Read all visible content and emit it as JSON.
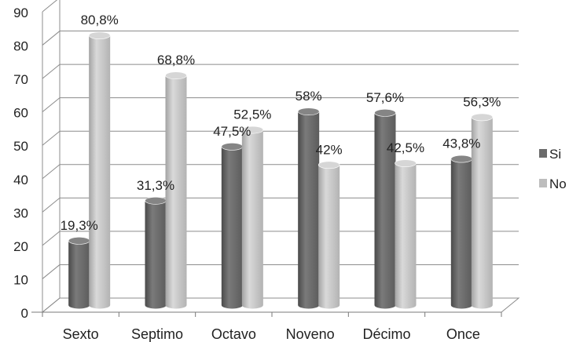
{
  "chart_data": {
    "type": "bar",
    "title": "",
    "xlabel": "",
    "ylabel": "",
    "ylim": [
      0,
      90
    ],
    "yticks": [
      0,
      10,
      20,
      30,
      40,
      50,
      60,
      70,
      80,
      90
    ],
    "grid": true,
    "three_d": true,
    "legend_position": "right",
    "categories": [
      "Sexto",
      "Septimo",
      "Octavo",
      "Noveno",
      "Décimo",
      "Once"
    ],
    "series": [
      {
        "name": "Si",
        "color": "#6b6b6b",
        "values": [
          19.3,
          31.3,
          47.5,
          58,
          57.6,
          43.8
        ],
        "labels": [
          "19,3%",
          "31,3%",
          "47,5%",
          "58%",
          "57,6%",
          "43,8%"
        ]
      },
      {
        "name": "No",
        "color": "#bdbdbd",
        "values": [
          80.8,
          68.8,
          52.5,
          42,
          42.5,
          56.3
        ],
        "labels": [
          "80,8%",
          "68,8%",
          "52,5%",
          "42%",
          "42,5%",
          "56,3%"
        ]
      }
    ]
  }
}
